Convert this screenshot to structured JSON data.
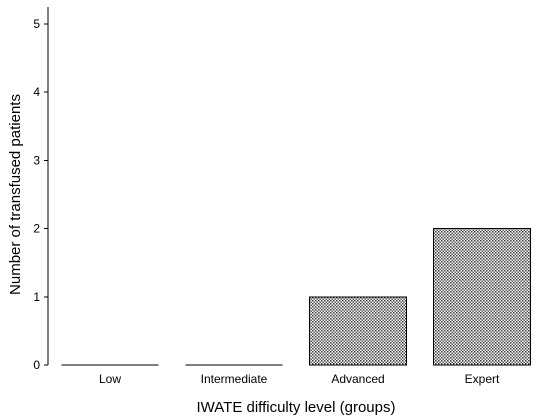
{
  "chart_data": {
    "type": "bar",
    "title": "",
    "xlabel": "IWATE difficulty level (groups)",
    "ylabel": "Number of transfused patients",
    "categories": [
      "Low",
      "Intermediate",
      "Advanced",
      "Expert"
    ],
    "values": [
      0,
      0,
      1,
      2
    ],
    "ylim": [
      0,
      5
    ],
    "yticks": [
      0,
      1,
      2,
      3,
      4,
      5
    ],
    "grid": false,
    "legend": "none",
    "bar_pattern": "dotted-crosshatch",
    "bar_outline_color": "#000000"
  }
}
